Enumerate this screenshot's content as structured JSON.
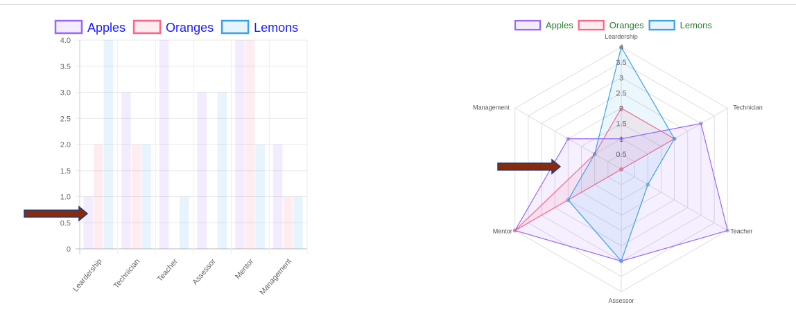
{
  "colors": {
    "apples": "#9966ff",
    "oranges": "#ff6384",
    "lemons": "#36a2eb",
    "bar_legend_text": "#1a1aff",
    "radar_legend_text": "#2e7d32",
    "arrow_fill": "#8b2a0a",
    "arrow_border": "#1f3a7a"
  },
  "chart_data": [
    {
      "type": "bar",
      "categories": [
        "Leardership",
        "Technician",
        "Teacher",
        "Assessor",
        "Mentor",
        "Management"
      ],
      "series": [
        {
          "name": "Apples",
          "values": [
            1,
            3,
            4,
            3,
            4,
            2
          ]
        },
        {
          "name": "Oranges",
          "values": [
            2,
            2,
            0,
            0,
            4,
            1
          ]
        },
        {
          "name": "Lemons",
          "values": [
            4,
            2,
            1,
            3,
            2,
            1
          ]
        }
      ],
      "ylim": [
        0,
        4
      ],
      "yticks": [
        "0",
        "0.5",
        "1.0",
        "1.5",
        "2.0",
        "2.5",
        "3.0",
        "3.5",
        "4.0"
      ],
      "grid": true,
      "legend": "top",
      "annotation": "arrow pointing at Leardership bars"
    },
    {
      "type": "radar",
      "categories": [
        "Leardership",
        "Technician",
        "Teacher",
        "Assessor",
        "Mentor",
        "Management"
      ],
      "series": [
        {
          "name": "Apples",
          "values": [
            1,
            3,
            4,
            3,
            4,
            2
          ]
        },
        {
          "name": "Oranges",
          "values": [
            2,
            2,
            0,
            0,
            4,
            1
          ]
        },
        {
          "name": "Lemons",
          "values": [
            4,
            2,
            1,
            3,
            2,
            1
          ]
        }
      ],
      "rlim": [
        0,
        4
      ],
      "rticks": [
        "0.5",
        "1",
        "1.5",
        "2",
        "2.5",
        "3",
        "3.5",
        "4"
      ],
      "grid": true,
      "legend": "top",
      "annotation": "arrow pointing at radar center"
    }
  ]
}
